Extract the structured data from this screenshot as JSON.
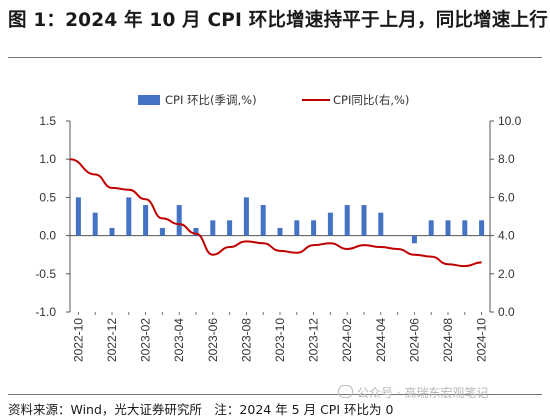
{
  "title": "图 1：2024 年 10 月 CPI 环比增速持平于上月，同比增速上行",
  "source": "资料来源：Wind，光大证券研究所　注：2024 年 5 月 CPI 环比为 0",
  "watermark": "公众号 · 高瑞东宏观笔记",
  "colors": {
    "bar": "#4472c4",
    "line": "#c00000",
    "axis": "#555555",
    "text": "#333333"
  },
  "chart_data": {
    "type": "bar+line",
    "categories": [
      "2022-10",
      "2022-11",
      "2022-12",
      "2023-01",
      "2023-02",
      "2023-03",
      "2023-04",
      "2023-05",
      "2023-06",
      "2023-07",
      "2023-08",
      "2023-09",
      "2023-10",
      "2023-11",
      "2023-12",
      "2024-01",
      "2024-02",
      "2024-03",
      "2024-04",
      "2024-05",
      "2024-06",
      "2024-07",
      "2024-08",
      "2024-09",
      "2024-10"
    ],
    "x_tick_labels": [
      "2022-10",
      "2022-12",
      "2023-02",
      "2023-04",
      "2023-06",
      "2023-08",
      "2023-10",
      "2023-12",
      "2024-02",
      "2024-04",
      "2024-06",
      "2024-08",
      "2024-10"
    ],
    "series": [
      {
        "name": "CPI 环比(季调,%)",
        "kind": "bar",
        "axis": "left",
        "values": [
          0.5,
          0.3,
          0.1,
          0.5,
          0.4,
          0.1,
          0.4,
          0.1,
          0.2,
          0.2,
          0.5,
          0.4,
          0.1,
          0.2,
          0.2,
          0.3,
          0.4,
          0.4,
          0.3,
          0.0,
          -0.1,
          0.2,
          0.2,
          0.2,
          0.2
        ]
      },
      {
        "name": "CPI同比(右,%)",
        "kind": "line",
        "axis": "right",
        "values": [
          8.0,
          7.2,
          6.5,
          6.4,
          5.9,
          4.9,
          4.6,
          4.1,
          3.0,
          3.4,
          3.7,
          3.6,
          3.2,
          3.1,
          3.5,
          3.6,
          3.3,
          3.5,
          3.4,
          3.3,
          3.0,
          2.9,
          2.5,
          2.4,
          2.6
        ]
      }
    ],
    "left_axis": {
      "min": -1.0,
      "max": 1.5,
      "ticks": [
        "1.5",
        "1.0",
        "0.5",
        "0.0",
        "-0.5",
        "-1.0"
      ]
    },
    "right_axis": {
      "min": 0.0,
      "max": 10.0,
      "ticks": [
        "10.0",
        "8.0",
        "6.0",
        "4.0",
        "2.0",
        "0.0"
      ]
    },
    "legend_position": "top",
    "grid": false
  }
}
